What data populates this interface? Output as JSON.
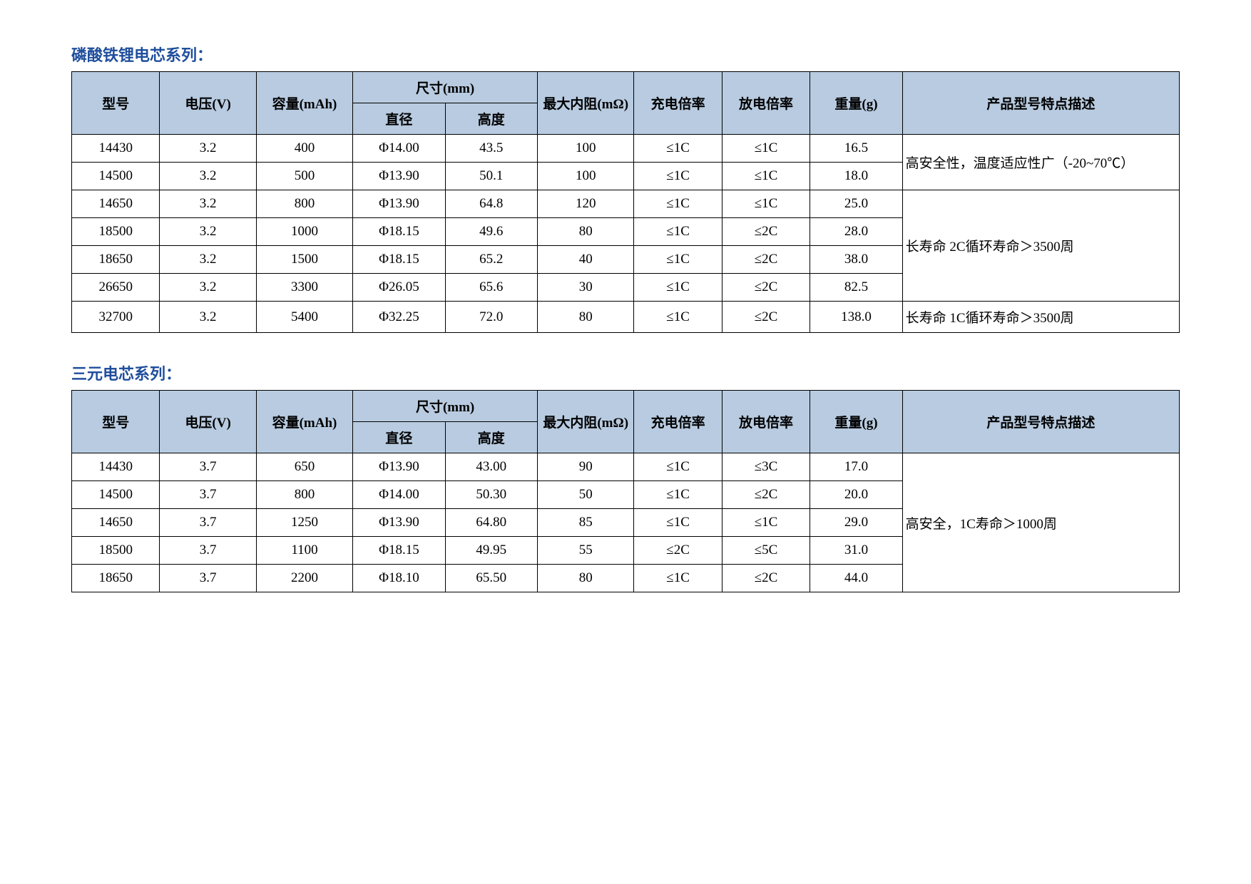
{
  "colors": {
    "header_bg": "#b8cbe0",
    "title_color": "#1f4e9c",
    "border_color": "#000000",
    "text_color": "#000000",
    "page_bg": "#ffffff"
  },
  "typography": {
    "title_fontsize": 22,
    "body_fontsize": 19,
    "font_family": "Microsoft YaHei, SimSun, Times New Roman"
  },
  "section1": {
    "title": "磷酸铁锂电芯系列：",
    "headers": {
      "model": "型号",
      "voltage": "电压(V)",
      "capacity": "容量(mAh)",
      "size": "尺寸(mm)",
      "diameter": "直径",
      "height": "高度",
      "resistance": "最大内阻(mΩ)",
      "charge_rate": "充电倍率",
      "discharge_rate": "放电倍率",
      "weight": "重量(g)",
      "description": "产品型号特点描述"
    },
    "rows": [
      {
        "model": "14430",
        "voltage": "3.2",
        "capacity": "400",
        "dia": "Φ14.00",
        "height": "43.5",
        "resist": "100",
        "charge": "≤1C",
        "discharge": "≤1C",
        "weight": "16.5"
      },
      {
        "model": "14500",
        "voltage": "3.2",
        "capacity": "500",
        "dia": "Φ13.90",
        "height": "50.1",
        "resist": "100",
        "charge": "≤1C",
        "discharge": "≤1C",
        "weight": "18.0"
      },
      {
        "model": "14650",
        "voltage": "3.2",
        "capacity": "800",
        "dia": "Φ13.90",
        "height": "64.8",
        "resist": "120",
        "charge": "≤1C",
        "discharge": "≤1C",
        "weight": "25.0"
      },
      {
        "model": "18500",
        "voltage": "3.2",
        "capacity": "1000",
        "dia": "Φ18.15",
        "height": "49.6",
        "resist": "80",
        "charge": "≤1C",
        "discharge": "≤2C",
        "weight": "28.0"
      },
      {
        "model": "18650",
        "voltage": "3.2",
        "capacity": "1500",
        "dia": "Φ18.15",
        "height": "65.2",
        "resist": "40",
        "charge": "≤1C",
        "discharge": "≤2C",
        "weight": "38.0"
      },
      {
        "model": "26650",
        "voltage": "3.2",
        "capacity": "3300",
        "dia": "Φ26.05",
        "height": "65.6",
        "resist": "30",
        "charge": "≤1C",
        "discharge": "≤2C",
        "weight": "82.5"
      },
      {
        "model": "32700",
        "voltage": "3.2",
        "capacity": "5400",
        "dia": "Φ32.25",
        "height": "72.0",
        "resist": "80",
        "charge": "≤1C",
        "discharge": "≤2C",
        "weight": "138.0"
      }
    ],
    "descriptions": {
      "d1": "高安全性，温度适应性广（-20~70℃）",
      "d2": "长寿命 2C循环寿命＞3500周",
      "d3": "长寿命 1C循环寿命＞3500周"
    }
  },
  "section2": {
    "title": "三元电芯系列：",
    "headers": {
      "model": "型号",
      "voltage": "电压(V)",
      "capacity": "容量(mAh)",
      "size": "尺寸(mm)",
      "diameter": "直径",
      "height": "高度",
      "resistance": "最大内阻(mΩ)",
      "charge_rate": "充电倍率",
      "discharge_rate": "放电倍率",
      "weight": "重量(g)",
      "description": "产品型号特点描述"
    },
    "rows": [
      {
        "model": "14430",
        "voltage": "3.7",
        "capacity": "650",
        "dia": "Φ13.90",
        "height": "43.00",
        "resist": "90",
        "charge": "≤1C",
        "discharge": "≤3C",
        "weight": "17.0"
      },
      {
        "model": "14500",
        "voltage": "3.7",
        "capacity": "800",
        "dia": "Φ14.00",
        "height": "50.30",
        "resist": "50",
        "charge": "≤1C",
        "discharge": "≤2C",
        "weight": "20.0"
      },
      {
        "model": "14650",
        "voltage": "3.7",
        "capacity": "1250",
        "dia": "Φ13.90",
        "height": "64.80",
        "resist": "85",
        "charge": "≤1C",
        "discharge": "≤1C",
        "weight": "29.0"
      },
      {
        "model": "18500",
        "voltage": "3.7",
        "capacity": "1100",
        "dia": "Φ18.15",
        "height": "49.95",
        "resist": "55",
        "charge": "≤2C",
        "discharge": "≤5C",
        "weight": "31.0"
      },
      {
        "model": "18650",
        "voltage": "3.7",
        "capacity": "2200",
        "dia": "Φ18.10",
        "height": "65.50",
        "resist": "80",
        "charge": "≤1C",
        "discharge": "≤2C",
        "weight": "44.0"
      }
    ],
    "descriptions": {
      "d1": "高安全，1C寿命＞1000周"
    }
  }
}
